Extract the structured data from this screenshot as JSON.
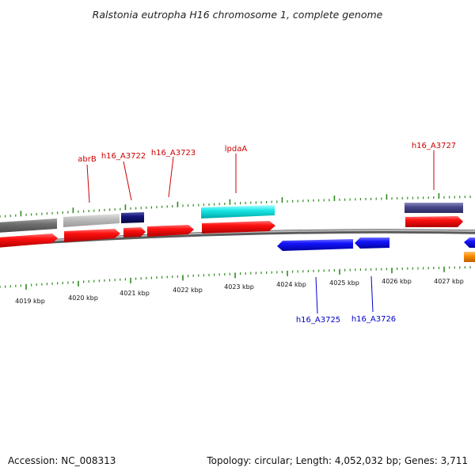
{
  "title": "Ralstonia eutropha H16 chromosome 1, complete genome",
  "footer": {
    "accession": "Accession: NC_008313",
    "summary": "Topology: circular; Length: 4,052,032 bp; Genes: 3,711"
  },
  "colors": {
    "forward_label": "#cc0000",
    "reverse_label": "#0000cc",
    "backbone": "#808080",
    "tick": "#2e8b1e"
  },
  "axis_labels": [
    "4019 kbp",
    "4020 kbp",
    "4021 kbp",
    "4022 kbp",
    "4023 kbp",
    "4024 kbp",
    "4025 kbp",
    "4026 kbp",
    "4027 kbp"
  ],
  "gene_labels": [
    {
      "text": "abrB",
      "strand": "forward"
    },
    {
      "text": "h16_A3722",
      "strand": "forward"
    },
    {
      "text": "h16_A3723",
      "strand": "forward"
    },
    {
      "text": "lpdaA",
      "strand": "forward"
    },
    {
      "text": "h16_A3727",
      "strand": "forward"
    },
    {
      "text": "h16_A3725",
      "strand": "reverse"
    },
    {
      "text": "h16_A3726",
      "strand": "reverse"
    }
  ],
  "features": [
    {
      "name": "cog-gray-1",
      "color": "#6e6e6e"
    },
    {
      "name": "cog-lightgray-2",
      "color": "#b8b8b8"
    },
    {
      "name": "cog-navy-3",
      "color": "#141477"
    },
    {
      "name": "cog-cyan-4",
      "color": "#19e0e0"
    },
    {
      "name": "cog-slate-5",
      "color": "#4a4a8c"
    },
    {
      "name": "cds-red",
      "color": "#ee0000"
    },
    {
      "name": "cds-blue",
      "color": "#1010e0"
    },
    {
      "name": "cds-orange",
      "color": "#ff8c00"
    }
  ]
}
